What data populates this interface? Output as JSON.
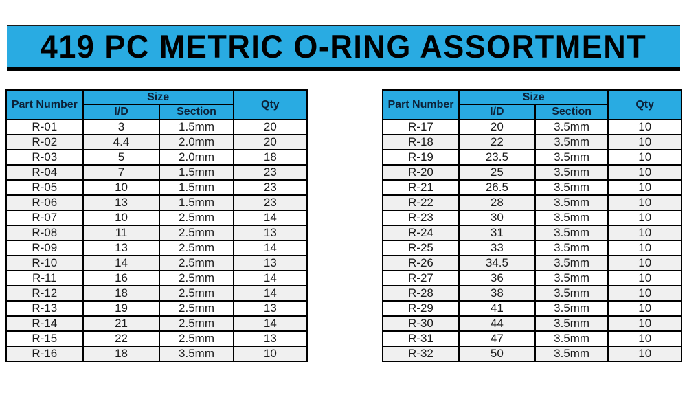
{
  "banner": {
    "title": "419 PC METRIC O-RING ASSORTMENT"
  },
  "colors": {
    "accent_cyan": "#29ABE2",
    "border_black": "#000000",
    "row_alt": "#F0F0F0",
    "header_text": "#0D2137",
    "body_text": "#1A1A1A"
  },
  "columns": {
    "part_number": "Part Number",
    "size_group": "Size",
    "inner_diameter": "I/D",
    "section": "Section",
    "qty": "Qty"
  },
  "left_table": {
    "rows": [
      {
        "part": "R-01",
        "id": "3",
        "section": "1.5mm",
        "qty": "20"
      },
      {
        "part": "R-02",
        "id": "4.4",
        "section": "2.0mm",
        "qty": "20"
      },
      {
        "part": "R-03",
        "id": "5",
        "section": "2.0mm",
        "qty": "18"
      },
      {
        "part": "R-04",
        "id": "7",
        "section": "1.5mm",
        "qty": "23"
      },
      {
        "part": "R-05",
        "id": "10",
        "section": "1.5mm",
        "qty": "23"
      },
      {
        "part": "R-06",
        "id": "13",
        "section": "1.5mm",
        "qty": "23"
      },
      {
        "part": "R-07",
        "id": "10",
        "section": "2.5mm",
        "qty": "14"
      },
      {
        "part": "R-08",
        "id": "11",
        "section": "2.5mm",
        "qty": "13"
      },
      {
        "part": "R-09",
        "id": "13",
        "section": "2.5mm",
        "qty": "14"
      },
      {
        "part": "R-10",
        "id": "14",
        "section": "2.5mm",
        "qty": "13"
      },
      {
        "part": "R-11",
        "id": "16",
        "section": "2.5mm",
        "qty": "14"
      },
      {
        "part": "R-12",
        "id": "18",
        "section": "2.5mm",
        "qty": "14"
      },
      {
        "part": "R-13",
        "id": "19",
        "section": "2.5mm",
        "qty": "13"
      },
      {
        "part": "R-14",
        "id": "21",
        "section": "2.5mm",
        "qty": "14"
      },
      {
        "part": "R-15",
        "id": "22",
        "section": "2.5mm",
        "qty": "13"
      },
      {
        "part": "R-16",
        "id": "18",
        "section": "3.5mm",
        "qty": "10"
      }
    ]
  },
  "right_table": {
    "rows": [
      {
        "part": "R-17",
        "id": "20",
        "section": "3.5mm",
        "qty": "10"
      },
      {
        "part": "R-18",
        "id": "22",
        "section": "3.5mm",
        "qty": "10"
      },
      {
        "part": "R-19",
        "id": "23.5",
        "section": "3.5mm",
        "qty": "10"
      },
      {
        "part": "R-20",
        "id": "25",
        "section": "3.5mm",
        "qty": "10"
      },
      {
        "part": "R-21",
        "id": "26.5",
        "section": "3.5mm",
        "qty": "10"
      },
      {
        "part": "R-22",
        "id": "28",
        "section": "3.5mm",
        "qty": "10"
      },
      {
        "part": "R-23",
        "id": "30",
        "section": "3.5mm",
        "qty": "10"
      },
      {
        "part": "R-24",
        "id": "31",
        "section": "3.5mm",
        "qty": "10"
      },
      {
        "part": "R-25",
        "id": "33",
        "section": "3.5mm",
        "qty": "10"
      },
      {
        "part": "R-26",
        "id": "34.5",
        "section": "3.5mm",
        "qty": "10"
      },
      {
        "part": "R-27",
        "id": "36",
        "section": "3.5mm",
        "qty": "10"
      },
      {
        "part": "R-28",
        "id": "38",
        "section": "3.5mm",
        "qty": "10"
      },
      {
        "part": "R-29",
        "id": "41",
        "section": "3.5mm",
        "qty": "10"
      },
      {
        "part": "R-30",
        "id": "44",
        "section": "3.5mm",
        "qty": "10"
      },
      {
        "part": "R-31",
        "id": "47",
        "section": "3.5mm",
        "qty": "10"
      },
      {
        "part": "R-32",
        "id": "50",
        "section": "3.5mm",
        "qty": "10"
      }
    ]
  }
}
